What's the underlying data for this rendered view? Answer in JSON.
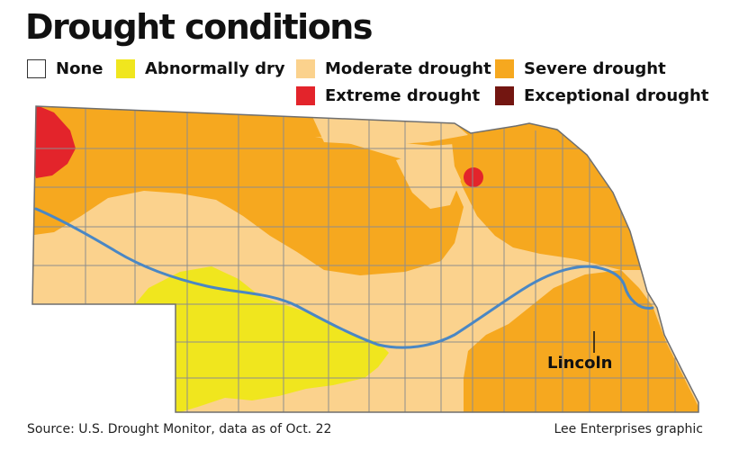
{
  "title": "Drought conditions",
  "legend": [
    {
      "label": "None",
      "color": "#ffffff"
    },
    {
      "label": "Abnormally dry",
      "color": "#f0e61e"
    },
    {
      "label": "Moderate drought",
      "color": "#fbd28d"
    },
    {
      "label": "Severe drought",
      "color": "#f6a81f"
    },
    {
      "label": "Extreme drought",
      "color": "#e3242b"
    },
    {
      "label": "Exceptional drought",
      "color": "#731611"
    }
  ],
  "map": {
    "state": "Nebraska",
    "city_label": "Lincoln",
    "river_color": "#4a87c4",
    "county_line_color": "#8d8d8d"
  },
  "footer": {
    "source": "Source: U.S. Drought Monitor, data as of Oct. 22",
    "credit": "Lee Enterprises graphic"
  }
}
